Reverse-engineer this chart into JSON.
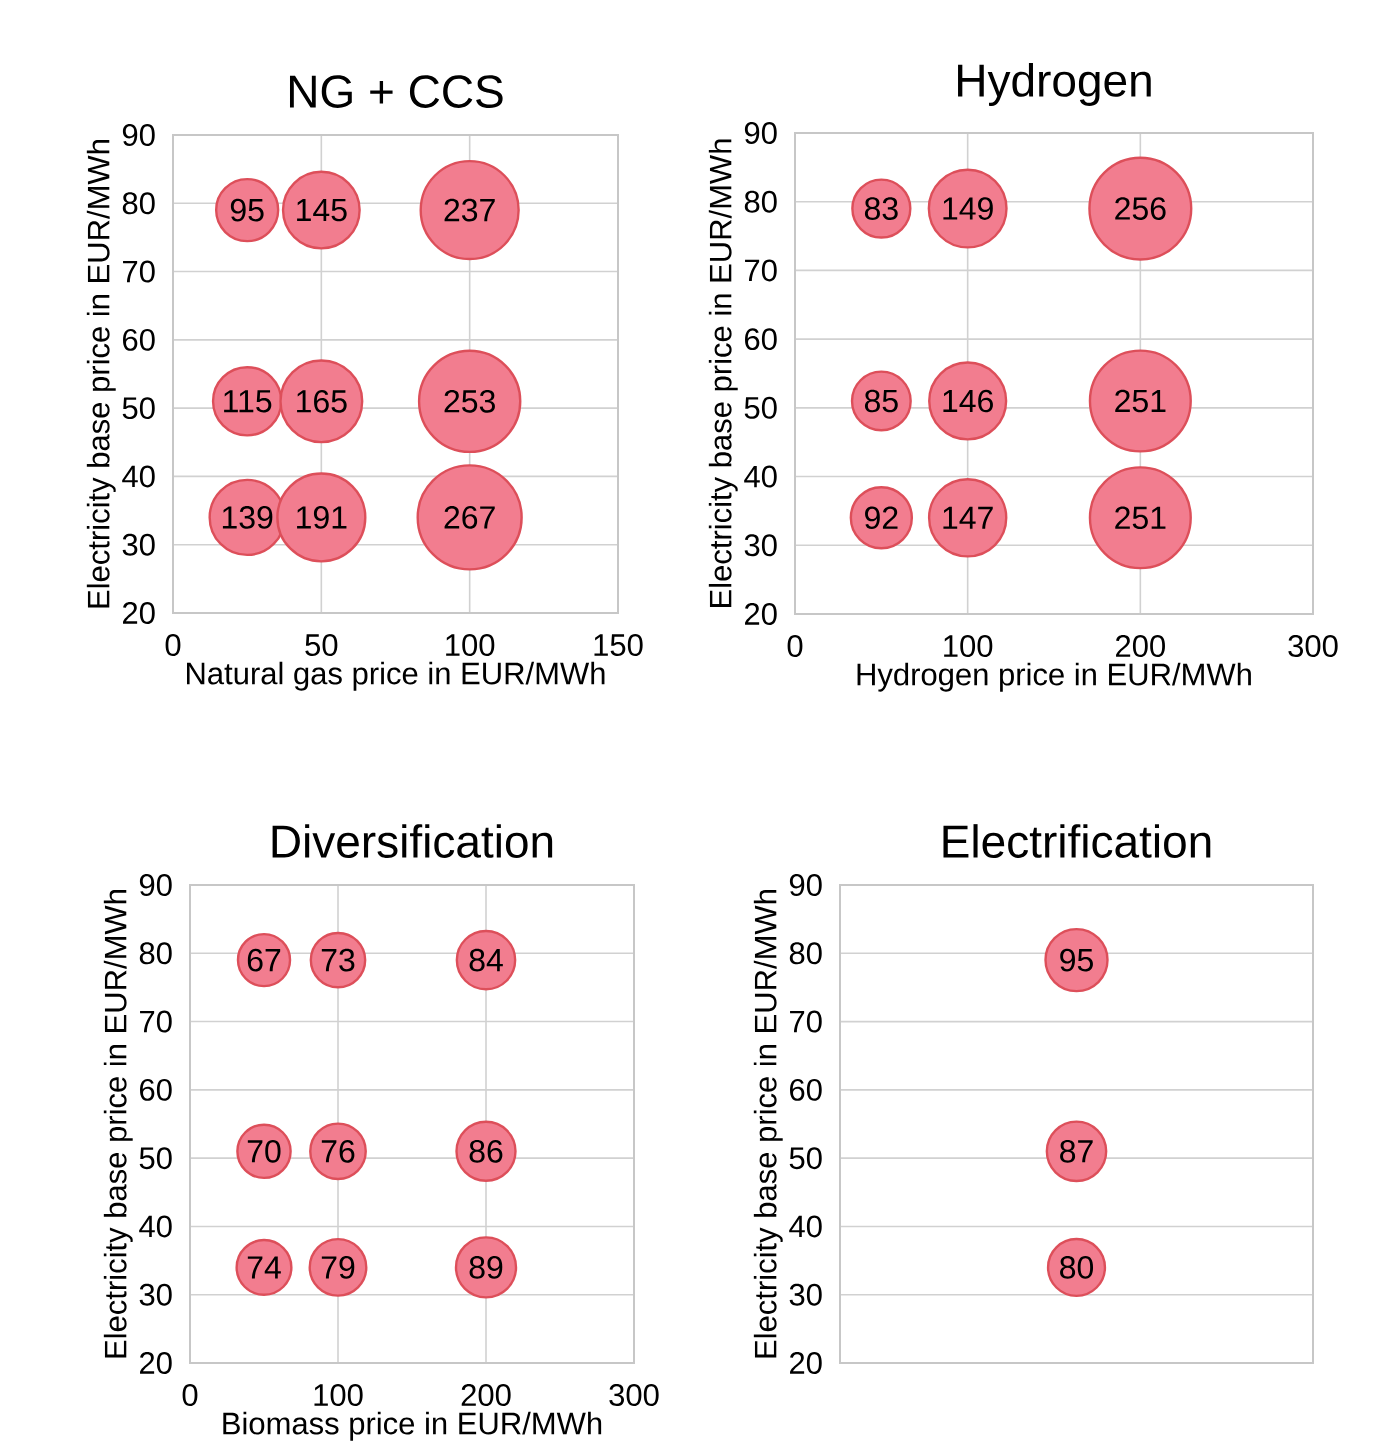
{
  "chart_data": [
    {
      "type": "bubble",
      "title": "NG + CCS",
      "xlabel": "Natural gas price in EUR/MWh",
      "ylabel": "Electricity base price in EUR/MWh",
      "x": [
        25,
        50,
        100,
        25,
        50,
        100,
        25,
        50,
        100
      ],
      "values": [
        79,
        79,
        79,
        51,
        51,
        51,
        34,
        34,
        34
      ],
      "sizes": [
        95,
        145,
        237,
        115,
        165,
        253,
        139,
        191,
        267
      ],
      "value_labels": [
        "95",
        "145",
        "237",
        "115",
        "165",
        "253",
        "139",
        "191",
        "267"
      ],
      "color": "#f27d8f",
      "xlim": [
        0,
        150
      ],
      "xticks": [
        0,
        50,
        100,
        150
      ],
      "ylim": [
        20,
        90
      ],
      "yticks": [
        20,
        30,
        40,
        50,
        60,
        70,
        80,
        90
      ],
      "grid": true
    },
    {
      "type": "bubble",
      "title": "Hydrogen",
      "xlabel": "Hydrogen price in EUR/MWh",
      "ylabel": "Electricity base price in EUR/MWh",
      "x": [
        50,
        100,
        200,
        50,
        100,
        200,
        50,
        100,
        200
      ],
      "values": [
        79,
        79,
        79,
        51,
        51,
        51,
        34,
        34,
        34
      ],
      "sizes": [
        83,
        149,
        256,
        85,
        146,
        251,
        92,
        147,
        251
      ],
      "value_labels": [
        "83",
        "149",
        "256",
        "85",
        "146",
        "251",
        "92",
        "147",
        "251"
      ],
      "color": "#f27d8f",
      "xlim": [
        0,
        300
      ],
      "xticks": [
        0,
        100,
        200,
        300
      ],
      "ylim": [
        20,
        90
      ],
      "yticks": [
        20,
        30,
        40,
        50,
        60,
        70,
        80,
        90
      ],
      "grid": true
    },
    {
      "type": "bubble",
      "title": "Diversification",
      "xlabel": "Biomass price in EUR/MWh",
      "ylabel": "Electricity base price in EUR/MWh",
      "x": [
        50,
        100,
        200,
        50,
        100,
        200,
        50,
        100,
        200
      ],
      "values": [
        79,
        79,
        79,
        51,
        51,
        51,
        34,
        34,
        34
      ],
      "sizes": [
        67,
        73,
        84,
        70,
        76,
        86,
        74,
        79,
        89
      ],
      "value_labels": [
        "67",
        "73",
        "84",
        "70",
        "76",
        "86",
        "74",
        "79",
        "89"
      ],
      "color": "#f27d8f",
      "xlim": [
        0,
        300
      ],
      "xticks": [
        0,
        100,
        200,
        300
      ],
      "ylim": [
        20,
        90
      ],
      "yticks": [
        20,
        30,
        40,
        50,
        60,
        70,
        80,
        90
      ],
      "grid": true
    },
    {
      "type": "bubble",
      "title": "Electrification",
      "ylabel": "Electricity base price in EUR/MWh",
      "categories": [
        null
      ],
      "series": [
        {
          "values": [
            79
          ],
          "sizes": [
            95
          ],
          "value_labels": [
            "95"
          ]
        },
        {
          "values": [
            51
          ],
          "sizes": [
            87
          ],
          "value_labels": [
            "87"
          ]
        },
        {
          "values": [
            34
          ],
          "sizes": [
            80
          ],
          "value_labels": [
            "80"
          ]
        }
      ],
      "color": "#f27d8f",
      "ylim": [
        20,
        90
      ],
      "yticks": [
        20,
        30,
        40,
        50,
        60,
        70,
        80,
        90
      ],
      "grid": "y"
    }
  ]
}
